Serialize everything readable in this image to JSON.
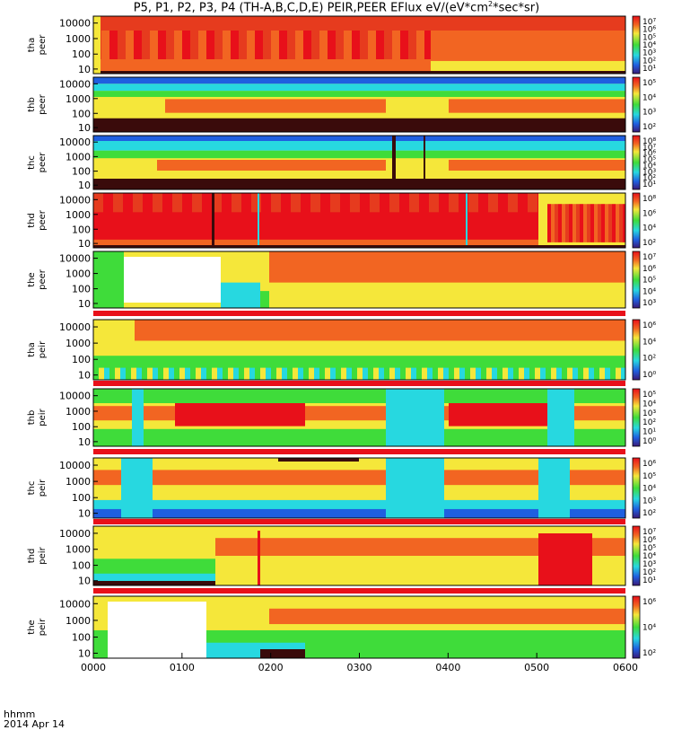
{
  "title_main": "P5, P1, P2, P3, P4 (TH-A,B,C,D,E) PEIR,PEER EFlux eV/(eV*cm",
  "title_sup": "2",
  "title_end": "*sec*sr)",
  "xlabel_units": "hhmm",
  "xlabel_date": "2014 Apr 14",
  "colors": {
    "red": "#e8101a",
    "orange": "#f26522",
    "dark_orange": "#e63b1e",
    "yellow": "#f5e73a",
    "green": "#3fdc3a",
    "cyan": "#27d8e0",
    "blue": "#1f5fe0",
    "dark": "#3a0b0b",
    "white": "#ffffff"
  },
  "chart_data": {
    "type": "heatmap",
    "x_ticks": [
      "0000",
      "0100",
      "0200",
      "0300",
      "0400",
      "0500",
      "0600"
    ],
    "y_ticks": [
      "10000",
      "1000",
      "100",
      "10"
    ],
    "panels": [
      {
        "label_line1": "tha",
        "label_line2": "peer",
        "cb_ticks": [
          "10⁷",
          "10⁶",
          "10⁵",
          "10⁴",
          "10³",
          "10²",
          "10¹"
        ]
      },
      {
        "label_line1": "thb",
        "label_line2": "peer",
        "cb_ticks": [
          "10⁵",
          "10⁴",
          "10³",
          "10²"
        ]
      },
      {
        "label_line1": "thc",
        "label_line2": "peer",
        "cb_ticks": [
          "10⁸",
          "10⁷",
          "10⁶",
          "10⁵",
          "10⁴",
          "10³",
          "10²",
          "10¹"
        ]
      },
      {
        "label_line1": "thd",
        "label_line2": "peer",
        "cb_ticks": [
          "10⁸",
          "10⁶",
          "10⁴",
          "10²"
        ]
      },
      {
        "label_line1": "the",
        "label_line2": "peer",
        "cb_ticks": [
          "10⁷",
          "10⁶",
          "10⁵",
          "10⁴",
          "10³"
        ]
      },
      {
        "label_line1": "tha",
        "label_line2": "peir",
        "cb_ticks": [
          "10⁶",
          "10⁴",
          "10²",
          "10⁰"
        ]
      },
      {
        "label_line1": "thb",
        "label_line2": "peir",
        "cb_ticks": [
          "10⁵",
          "10⁴",
          "10³",
          "10²",
          "10¹",
          "10⁰"
        ]
      },
      {
        "label_line1": "thc",
        "label_line2": "peir",
        "cb_ticks": [
          "10⁶",
          "10⁵",
          "10⁴",
          "10³",
          "10²"
        ]
      },
      {
        "label_line1": "thd",
        "label_line2": "peir",
        "cb_ticks": [
          "10⁷",
          "10⁶",
          "10⁵",
          "10⁴",
          "10³",
          "10²",
          "10¹"
        ]
      },
      {
        "label_line1": "the",
        "label_line2": "peir",
        "cb_ticks": [
          "10⁶",
          "10⁴",
          "10²"
        ]
      }
    ]
  }
}
